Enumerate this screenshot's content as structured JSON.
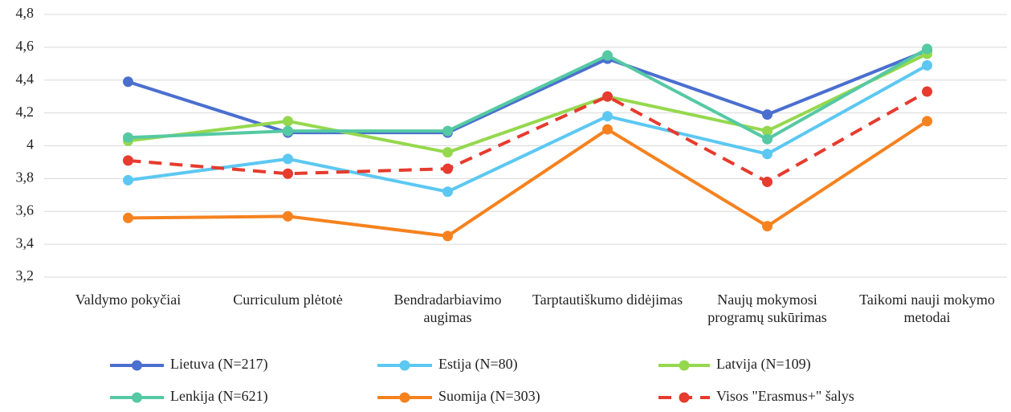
{
  "chart_data": {
    "type": "line",
    "categories": [
      "Valdymo pokyčiai",
      "Curriculum plėtotė",
      "Bendradarbiavimo augimas",
      "Tarptautiškumo didėjimas",
      "Naujų mokymosi programų sukūrimas",
      "Taikomi nauji mokymo metodai"
    ],
    "series": [
      {
        "name": "Lietuva (N=217)",
        "color": "#4a6fcf",
        "values": [
          4.39,
          4.08,
          4.08,
          4.53,
          4.19,
          4.58
        ]
      },
      {
        "name": "Estija (N=80)",
        "color": "#5cc8f2",
        "values": [
          3.79,
          3.92,
          3.72,
          4.18,
          3.95,
          4.49
        ]
      },
      {
        "name": "Latvija (N=109)",
        "color": "#95d84e",
        "values": [
          4.03,
          4.15,
          3.96,
          4.3,
          4.09,
          4.56
        ]
      },
      {
        "name": "Lenkija (N=621)",
        "color": "#55c9a3",
        "values": [
          4.05,
          4.09,
          4.09,
          4.55,
          4.04,
          4.59
        ]
      },
      {
        "name": "Suomija (N=303)",
        "color": "#f5821f",
        "values": [
          3.56,
          3.57,
          3.45,
          4.1,
          3.51,
          4.15
        ]
      },
      {
        "name": "Visos \"Erasmus+\" šalys",
        "color": "#e63b2e",
        "dashed": true,
        "values": [
          3.91,
          3.83,
          3.86,
          4.3,
          3.78,
          4.33
        ]
      }
    ],
    "ylim": [
      3.2,
      4.8
    ],
    "yticks": [
      {
        "value": 3.2,
        "label": "3,2"
      },
      {
        "value": 3.4,
        "label": "3,4"
      },
      {
        "value": 3.6,
        "label": "3,6"
      },
      {
        "value": 3.8,
        "label": "3,8"
      },
      4,
      {
        "value": 4.2,
        "label": "4,2"
      },
      {
        "value": 4.4,
        "label": "4,4"
      },
      {
        "value": 4.6,
        "label": "4,6"
      },
      {
        "value": 4.8,
        "label": "4,8"
      }
    ],
    "grid": true,
    "legend": "bottom"
  }
}
